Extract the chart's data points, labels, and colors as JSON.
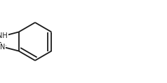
{
  "background": "#ffffff",
  "line_color": "#1a1a1a",
  "line_width": 1.3,
  "dbo_hex": 0.022,
  "dbo_5": 0.02,
  "font_size_atom": 7.0,
  "font_size_s": 8.5,
  "font_size_ch3": 7.0,
  "text_color": "#1a1a1a",
  "figw": 2.38,
  "figh": 1.18,
  "dpi": 100
}
